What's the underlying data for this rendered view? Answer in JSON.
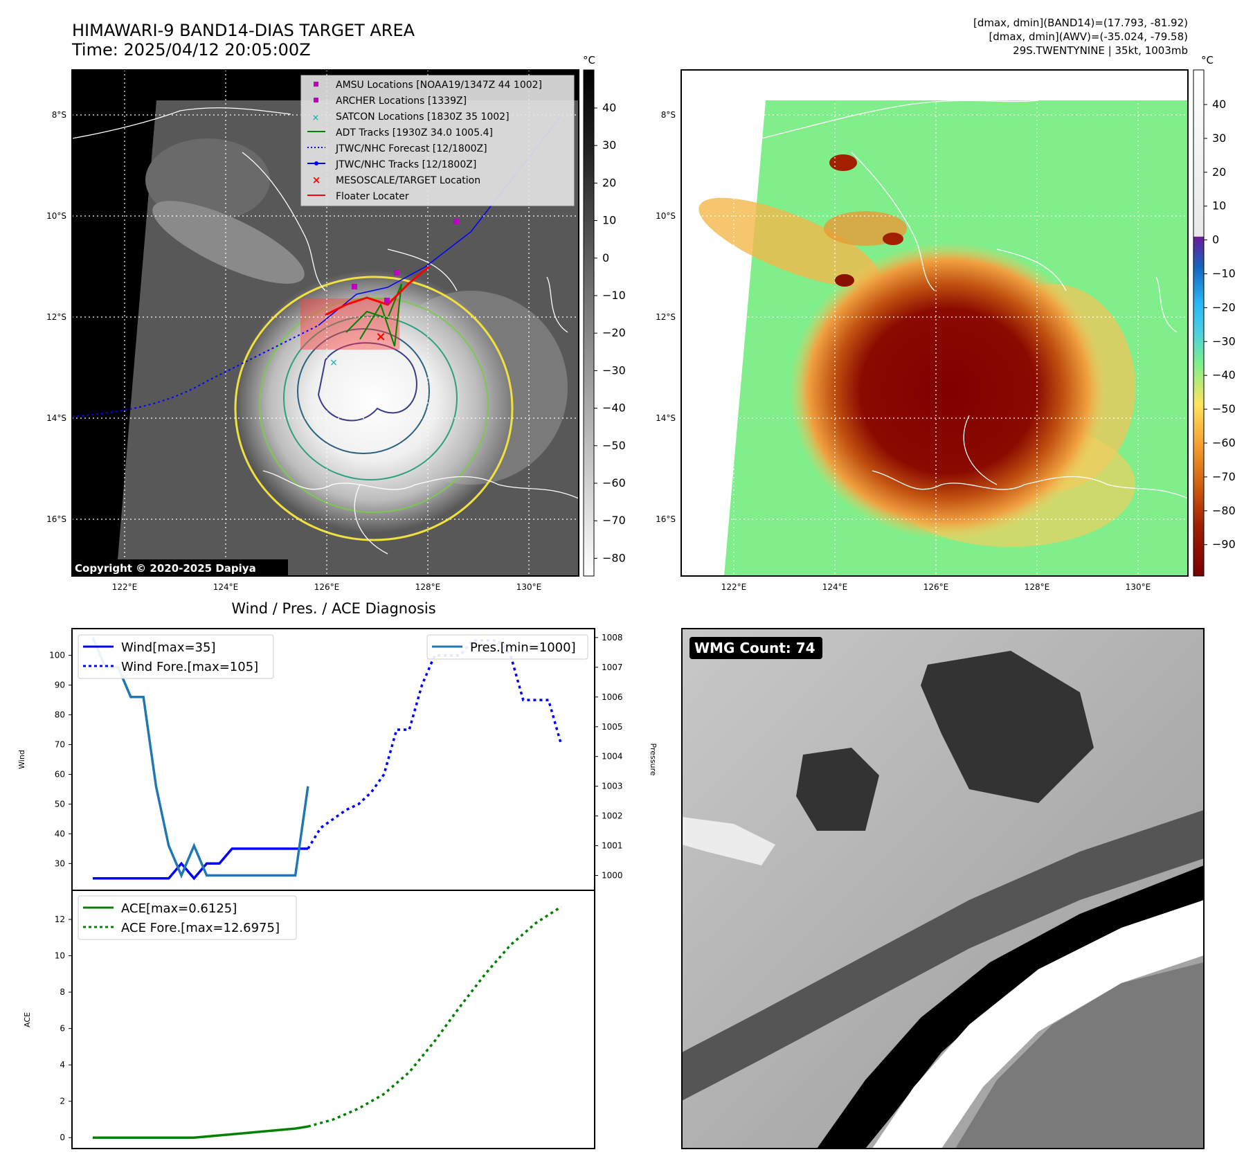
{
  "header": {
    "title": "HIMAWARI-9 BAND14-DIAS TARGET AREA",
    "time": "Time: 2025/04/12 20:05:00Z",
    "stats": [
      "[dmax, dmin](BAND14)=(17.793, -81.92)",
      "[dmax, dmin](AWV)=(-35.024, -79.58)",
      "29S.TWENTYNINE | 35kt, 1003mb"
    ]
  },
  "map_common": {
    "lat_labels": [
      "8°S",
      "10°S",
      "12°S",
      "14°S",
      "16°S"
    ],
    "lon_labels": [
      "122°E",
      "124°E",
      "126°E",
      "128°E",
      "130°E"
    ]
  },
  "ir_map": {
    "copyright": "Copyright © 2020-2025 Dapiya",
    "legend": [
      "AMSU Locations [NOAA19/1347Z 44 1002]",
      "ARCHER Locations [1339Z]",
      "SATCON Locations [1830Z 35 1002]",
      "ADT Tracks [1930Z 34.0 1005.4]",
      "JTWC/NHC Forecast [12/1800Z]",
      "JTWC/NHC Tracks [12/1800Z]",
      "MESOSCALE/TARGET Location",
      "Floater Locater"
    ],
    "colorbar_unit": "°C",
    "colorbar_ticks": [
      "40",
      "30",
      "20",
      "10",
      "0",
      "−10",
      "−20",
      "−30",
      "−40",
      "−50",
      "−60",
      "−70",
      "−80"
    ]
  },
  "wv_map": {
    "colorbar_unit": "°C",
    "colorbar_ticks": [
      "40",
      "30",
      "20",
      "10",
      "0",
      "−10",
      "−20",
      "−30",
      "−40",
      "−50",
      "−60",
      "−70",
      "−80",
      "−90"
    ]
  },
  "chart_data": [
    {
      "type": "line",
      "title": "Wind / Pres. / ACE Diagnosis",
      "ylabel": "Wind",
      "ylabel_right": "Pressure",
      "ylim": [
        21,
        109
      ],
      "ylim_right": [
        999.5,
        1008.3
      ],
      "yticks": [
        30,
        40,
        50,
        60,
        70,
        80,
        90,
        100
      ],
      "yticks_right": [
        1000,
        1001,
        1002,
        1003,
        1004,
        1005,
        1006,
        1007,
        1008
      ],
      "x_range": [
        0,
        38
      ],
      "legend_left": [
        "Wind[max=35]",
        "Wind Fore.[max=105]"
      ],
      "legend_right": [
        "Pres.[min=1000]"
      ],
      "series": [
        {
          "name": "Wind[max=35]",
          "style": "solid",
          "color": "#0000ff",
          "x": [
            0,
            1,
            2,
            3,
            4,
            5,
            6,
            7,
            8,
            9,
            10,
            11,
            12,
            13,
            14,
            15,
            16,
            17
          ],
          "y": [
            25,
            25,
            25,
            25,
            25,
            25,
            25,
            30,
            25,
            30,
            30,
            35,
            35,
            35,
            35,
            35,
            35,
            35
          ]
        },
        {
          "name": "Wind Fore.[max=105]",
          "style": "dotted",
          "color": "#0000ff",
          "x": [
            17,
            18,
            19,
            20,
            21,
            22,
            23,
            24,
            25,
            26,
            27,
            28,
            29,
            30,
            31,
            32,
            33,
            34,
            35,
            36,
            37
          ],
          "y": [
            35,
            42,
            45,
            48,
            50,
            54,
            60,
            75,
            75,
            90,
            100,
            100,
            100,
            105,
            105,
            105,
            100,
            85,
            85,
            85,
            70
          ]
        },
        {
          "name": "Pres.[min=1000]",
          "style": "solid",
          "color": "#1f77b4",
          "axis": "right",
          "x": [
            0,
            1,
            2,
            3,
            4,
            5,
            6,
            7,
            8,
            9,
            10,
            11,
            12,
            13,
            14,
            15,
            16,
            17
          ],
          "y": [
            1008,
            1007,
            1007,
            1006,
            1006,
            1003,
            1001,
            1000,
            1001,
            1000,
            1000,
            1000,
            1000,
            1000,
            1000,
            1000,
            1000,
            1003
          ]
        }
      ]
    },
    {
      "type": "line",
      "ylabel": "ACE",
      "ylim": [
        -0.6,
        13.6
      ],
      "yticks": [
        0,
        2,
        4,
        6,
        8,
        10,
        12
      ],
      "x_range": [
        0,
        38
      ],
      "legend": [
        "ACE[max=0.6125]",
        "ACE Fore.[max=12.6975]"
      ],
      "series": [
        {
          "name": "ACE[max=0.6125]",
          "style": "solid",
          "color": "#008000",
          "x": [
            0,
            4,
            8,
            12,
            16,
            17
          ],
          "y": [
            0,
            0,
            0,
            0.25,
            0.5,
            0.6125
          ]
        },
        {
          "name": "ACE Fore.[max=12.6975]",
          "style": "dotted",
          "color": "#008000",
          "x": [
            17,
            19,
            21,
            23,
            25,
            27,
            29,
            31,
            33,
            35,
            37
          ],
          "y": [
            0.6125,
            1.0,
            1.6,
            2.4,
            3.6,
            5.3,
            7.2,
            9.0,
            10.6,
            11.8,
            12.6975
          ]
        }
      ]
    }
  ],
  "wmg": {
    "label": "WMG Count: 74"
  }
}
